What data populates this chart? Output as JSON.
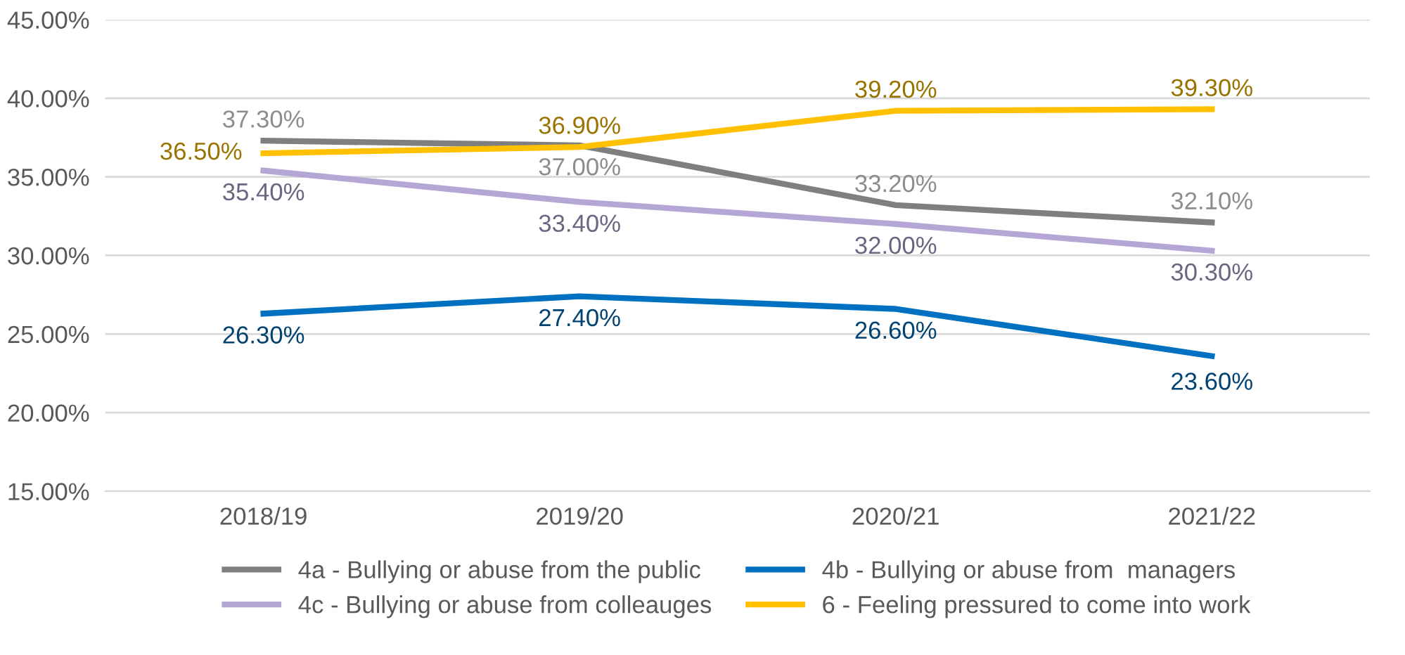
{
  "chart_data": {
    "type": "line",
    "categories": [
      "2018/19",
      "2019/20",
      "2020/21",
      "2021/22"
    ],
    "series": [
      {
        "name": "4a - Bullying or abuse from the public",
        "color": "#7f7f7f",
        "values": [
          37.3,
          37.0,
          33.2,
          32.1
        ],
        "value_labels": [
          "37.30%",
          "37.00%",
          "33.20%",
          "32.10%"
        ]
      },
      {
        "name": "4b - Bullying or abuse from  managers",
        "color": "#0070c0",
        "values": [
          26.3,
          27.4,
          26.6,
          23.6
        ],
        "value_labels": [
          "26.30%",
          "27.40%",
          "26.60%",
          "23.60%"
        ]
      },
      {
        "name": "4c - Bullying or abuse from colleauges",
        "color": "#b4a7d6",
        "values": [
          35.4,
          33.4,
          32.0,
          30.3
        ],
        "value_labels": [
          "35.40%",
          "33.40%",
          "32.00%",
          "30.30%"
        ]
      },
      {
        "name": "6 - Feeling pressured to come into work",
        "color": "#ffc000",
        "values": [
          36.5,
          36.9,
          39.2,
          39.3
        ],
        "value_labels": [
          "36.50%",
          "36.90%",
          "39.20%",
          "39.30%"
        ]
      }
    ],
    "ylim": [
      15,
      45
    ],
    "yticks": [
      {
        "value": 15,
        "label": "15.00%"
      },
      {
        "value": 20,
        "label": "20.00%"
      },
      {
        "value": 25,
        "label": "25.00%"
      },
      {
        "value": 30,
        "label": "30.00%"
      },
      {
        "value": 35,
        "label": "35.00%"
      },
      {
        "value": 40,
        "label": "40.00%"
      },
      {
        "value": 45,
        "label": "45.00%"
      }
    ],
    "grid": "y",
    "legend": "bottom",
    "marker": "none",
    "line_style": "solid"
  }
}
